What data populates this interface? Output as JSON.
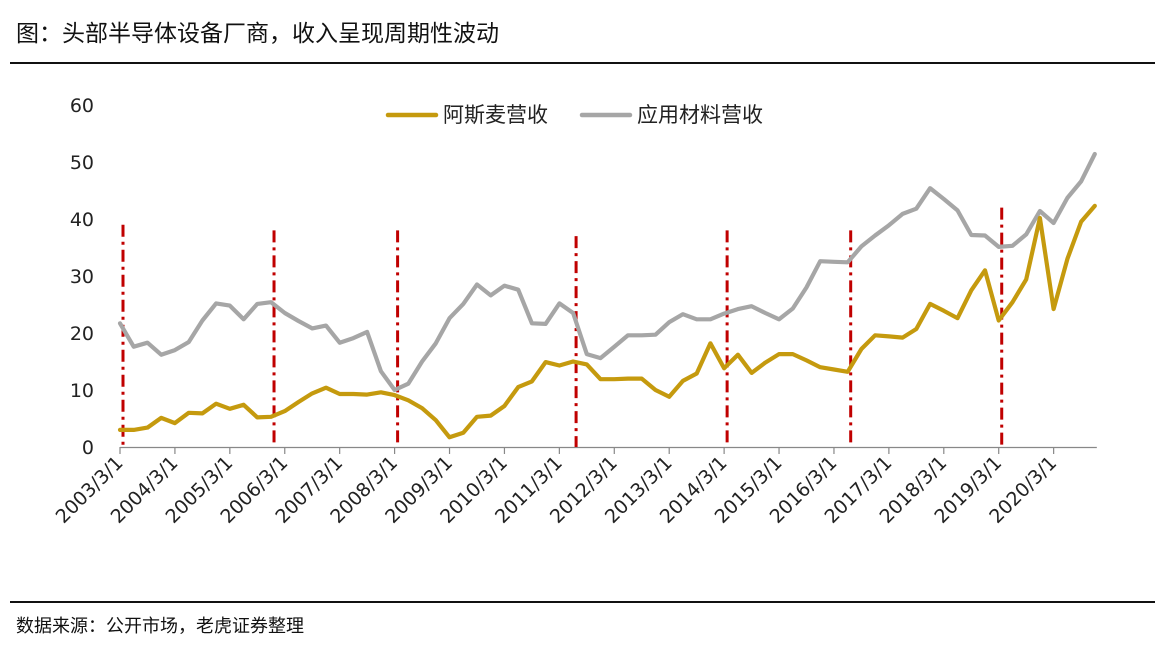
{
  "header": {
    "title": "图：头部半导体设备厂商，收入呈现周期性波动"
  },
  "footer": {
    "source": "数据来源：公开市场，老虎证券整理"
  },
  "chart_data": {
    "type": "line",
    "title": "图：头部半导体设备厂商，收入呈现周期性波动",
    "xlabel": "",
    "ylabel": "",
    "ylim": [
      0,
      60
    ],
    "yticks": [
      "0",
      "10",
      "20",
      "30",
      "40",
      "50",
      "60"
    ],
    "xticks": [
      "2003/3/1",
      "2004/3/1",
      "2005/3/1",
      "2006/3/1",
      "2007/3/1",
      "2008/3/1",
      "2009/3/1",
      "2010/3/1",
      "2011/3/1",
      "2012/3/1",
      "2013/3/1",
      "2014/3/1",
      "2015/3/1",
      "2016/3/1",
      "2017/3/1",
      "2018/3/1",
      "2019/3/1",
      "2020/3/1"
    ],
    "x_start": "2003/3/1",
    "x_step": "quarter",
    "legend_position": "top-center",
    "grid": false,
    "series": [
      {
        "name": "阿斯麦营收",
        "color": "#C59A0E",
        "values": [
          3.0,
          3.0,
          3.4,
          5.1,
          4.2,
          6.0,
          5.9,
          7.6,
          6.7,
          7.4,
          5.2,
          5.3,
          6.3,
          7.9,
          9.4,
          10.4,
          9.3,
          9.3,
          9.2,
          9.6,
          9.1,
          8.2,
          6.8,
          4.7,
          1.7,
          2.5,
          5.3,
          5.5,
          7.2,
          10.5,
          11.5,
          14.9,
          14.3,
          15.0,
          14.5,
          11.9,
          11.9,
          12.0,
          12.0,
          10.0,
          8.8,
          11.6,
          12.9,
          18.2,
          13.8,
          16.2,
          13.0,
          14.8,
          16.3,
          16.3,
          15.2,
          14.0,
          13.6,
          13.2,
          17.2,
          19.6,
          19.4,
          19.2,
          20.7,
          25.1,
          23.9,
          22.6,
          27.5,
          31.0,
          22.2,
          25.4,
          29.4,
          40.2,
          24.2,
          33.0,
          39.5,
          42.3
        ]
      },
      {
        "name": "应用材料营收",
        "color": "#A6A6A6",
        "values": [
          21.7,
          17.6,
          18.3,
          16.2,
          17.0,
          18.4,
          22.2,
          25.2,
          24.8,
          22.4,
          25.1,
          25.4,
          23.5,
          22.1,
          20.8,
          21.3,
          18.3,
          19.1,
          20.2,
          13.3,
          10.0,
          11.1,
          15.0,
          18.2,
          22.6,
          25.1,
          28.5,
          26.6,
          28.3,
          27.6,
          21.7,
          21.6,
          25.2,
          23.5,
          16.3,
          15.6,
          17.6,
          19.6,
          19.6,
          19.7,
          21.9,
          23.3,
          22.4,
          22.4,
          23.4,
          24.2,
          24.7,
          23.5,
          22.4,
          24.3,
          28.0,
          32.6,
          32.5,
          32.4,
          35.2,
          37.1,
          38.9,
          40.9,
          41.8,
          45.4,
          43.5,
          41.5,
          37.2,
          37.1,
          35.1,
          35.3,
          37.3,
          41.4,
          39.3,
          43.7,
          46.6,
          51.4
        ]
      }
    ],
    "cycle_markers": {
      "color": "#C00000",
      "x": [
        "2003/3/1",
        "2005/12/1",
        "2008/3/1",
        "2011/6/1",
        "2014/3/1",
        "2016/6/1",
        "2019/3/1"
      ],
      "y_top": [
        39,
        38,
        38,
        37,
        38,
        38,
        42
      ]
    }
  }
}
